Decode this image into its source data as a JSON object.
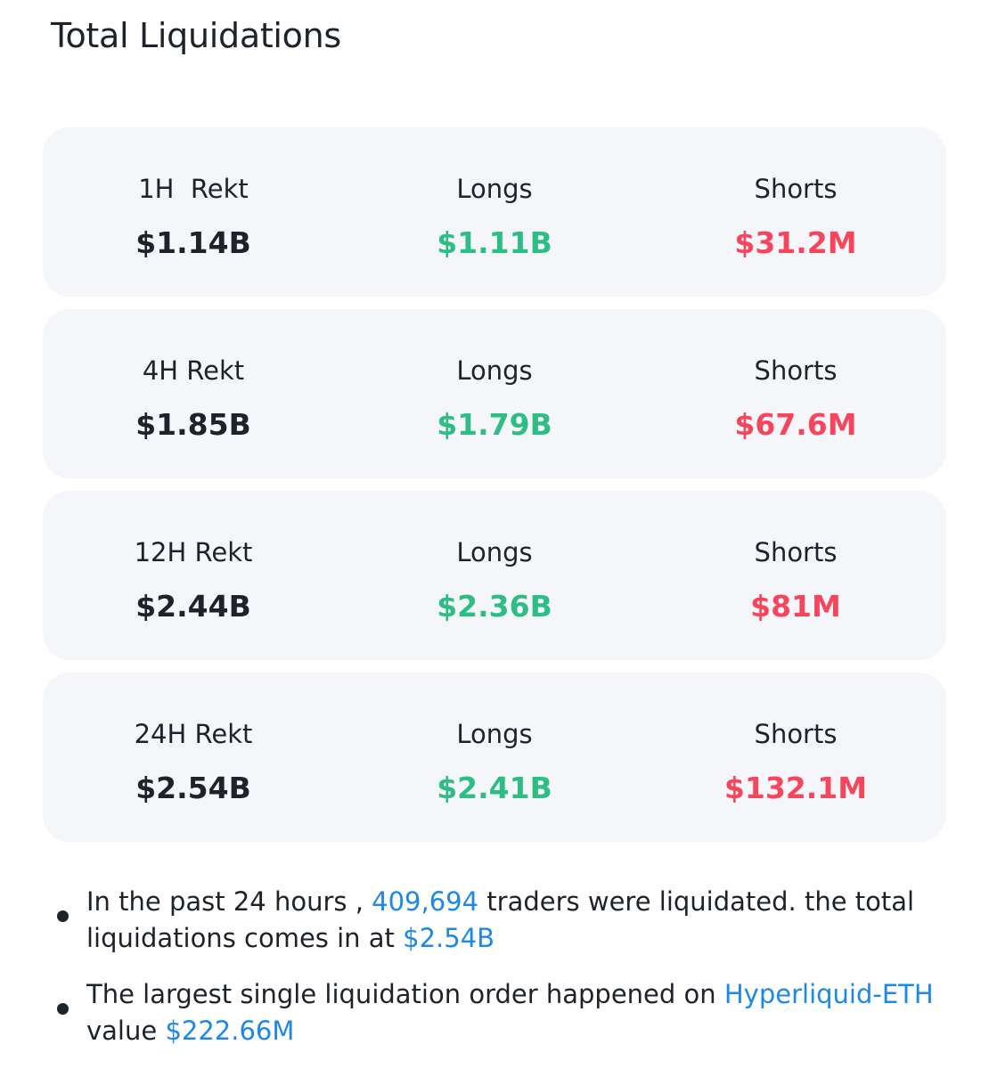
{
  "header": {
    "title": "Total Liquidations"
  },
  "colors": {
    "long": "#2ebd85",
    "short": "#f6465d",
    "link": "#1e88e5",
    "text": "#1e2329",
    "card_bg": "#f4f6f9"
  },
  "rows": [
    {
      "period_label": "1H  Rekt",
      "total": "$1.14B",
      "longs_label": "Longs",
      "longs": "$1.11B",
      "shorts_label": "Shorts",
      "shorts": "$31.2M"
    },
    {
      "period_label": "4H Rekt",
      "total": "$1.85B",
      "longs_label": "Longs",
      "longs": "$1.79B",
      "shorts_label": "Shorts",
      "shorts": "$67.6M"
    },
    {
      "period_label": "12H Rekt",
      "total": "$2.44B",
      "longs_label": "Longs",
      "longs": "$2.36B",
      "shorts_label": "Shorts",
      "shorts": "$81M"
    },
    {
      "period_label": "24H Rekt",
      "total": "$2.54B",
      "longs_label": "Longs",
      "longs": "$2.41B",
      "shorts_label": "Shorts",
      "shorts": "$132.1M"
    }
  ],
  "notes": {
    "first": {
      "prefix": "In the past 24 hours , ",
      "traders_count": "409,694",
      "middle": " traders were liquidated. the total liquidations comes in at ",
      "total": "$2.54B"
    },
    "second": {
      "prefix": "The largest single liquidation order happened on ",
      "pair": "Hyperliquid-ETH",
      "middle": " value ",
      "value": "$222.66M"
    }
  }
}
